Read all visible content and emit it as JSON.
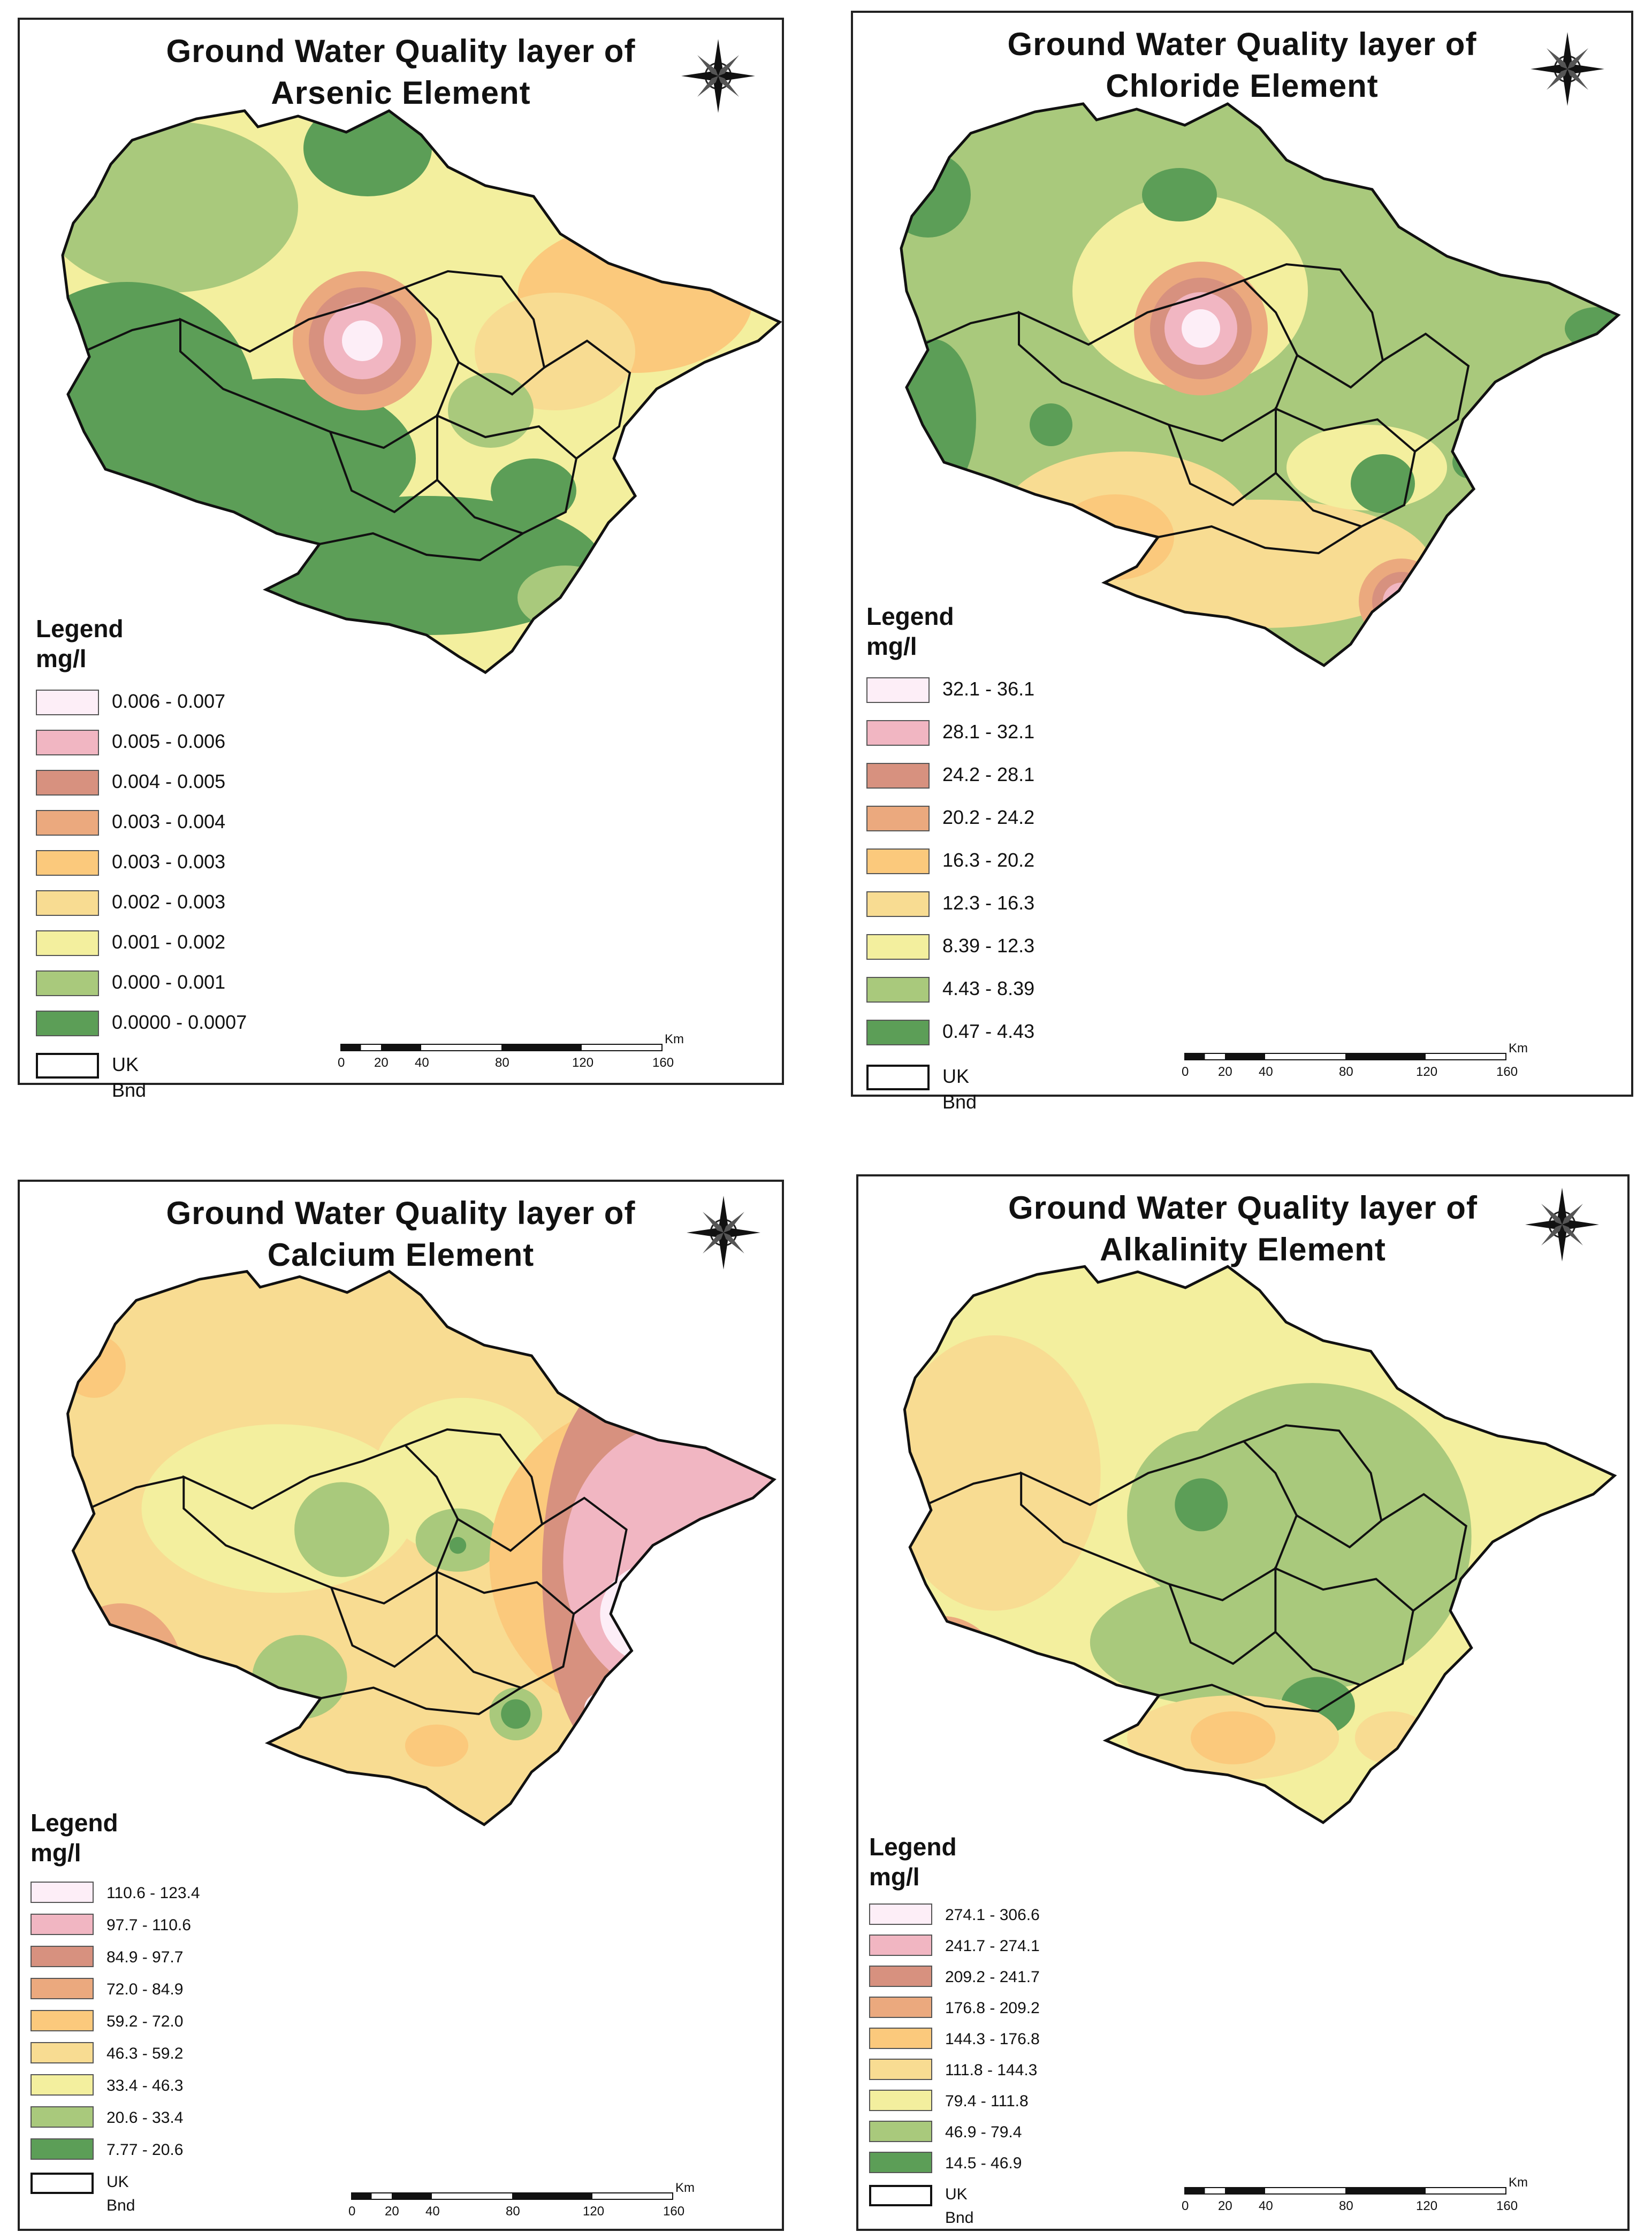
{
  "panels": [
    {
      "title_line1": "Ground Water Quality layer of",
      "title_line2": "Arsenic Element",
      "legend_heading": "Legend",
      "legend_unit": "mg/l",
      "legend_items": [
        {
          "label": "0.006 - 0.007",
          "color": "#fdeef7"
        },
        {
          "label": "0.005 - 0.006",
          "color": "#f1b6c2"
        },
        {
          "label": "0.004 - 0.005",
          "color": "#d7917f"
        },
        {
          "label": "0.003 - 0.004",
          "color": "#eba97e"
        },
        {
          "label": "0.003 - 0.003",
          "color": "#fbc97c"
        },
        {
          "label": "0.002 - 0.003",
          "color": "#f8dc92"
        },
        {
          "label": "0.001 - 0.002",
          "color": "#f3ef9e"
        },
        {
          "label": "0.000 - 0.001",
          "color": "#a9c97c"
        },
        {
          "label": "0.0000 - 0.0007",
          "color": "#5c9e57"
        }
      ],
      "boundary_label": "UK Bnd",
      "scale": {
        "unit": "Km",
        "ticks": [
          "0",
          "20",
          "40",
          "80",
          "120",
          "160"
        ]
      }
    },
    {
      "title_line1": "Ground Water Quality layer of",
      "title_line2": "Chloride Element",
      "legend_heading": "Legend",
      "legend_unit": "mg/l",
      "legend_items": [
        {
          "label": "32.1 - 36.1",
          "color": "#fdeef7"
        },
        {
          "label": "28.1 - 32.1",
          "color": "#f1b6c2"
        },
        {
          "label": "24.2 - 28.1",
          "color": "#d7917f"
        },
        {
          "label": "20.2 - 24.2",
          "color": "#eba97e"
        },
        {
          "label": "16.3 - 20.2",
          "color": "#fbc97c"
        },
        {
          "label": "12.3 - 16.3",
          "color": "#f8dc92"
        },
        {
          "label": "8.39 - 12.3",
          "color": "#f3ef9e"
        },
        {
          "label": "4.43 - 8.39",
          "color": "#a9c97c"
        },
        {
          "label": "0.47 - 4.43",
          "color": "#5c9e57"
        }
      ],
      "boundary_label": "UK Bnd",
      "scale": {
        "unit": "Km",
        "ticks": [
          "0",
          "20",
          "40",
          "80",
          "120",
          "160"
        ]
      }
    },
    {
      "title_line1": "Ground Water Quality layer of",
      "title_line2": "Calcium Element",
      "legend_heading": "Legend",
      "legend_unit": "mg/l",
      "legend_items": [
        {
          "label": "110.6 - 123.4",
          "color": "#fdeef7"
        },
        {
          "label": "97.7 - 110.6",
          "color": "#f1b6c2"
        },
        {
          "label": "84.9 - 97.7",
          "color": "#d7917f"
        },
        {
          "label": "72.0 - 84.9",
          "color": "#eba97e"
        },
        {
          "label": "59.2 - 72.0",
          "color": "#fbc97c"
        },
        {
          "label": "46.3 - 59.2",
          "color": "#f8dc92"
        },
        {
          "label": "33.4 - 46.3",
          "color": "#f3ef9e"
        },
        {
          "label": "20.6 - 33.4",
          "color": "#a9c97c"
        },
        {
          "label": "7.77 - 20.6",
          "color": "#5c9e57"
        }
      ],
      "boundary_label": "UK Bnd",
      "scale": {
        "unit": "Km",
        "ticks": [
          "0",
          "20",
          "40",
          "80",
          "120",
          "160"
        ]
      }
    },
    {
      "title_line1": "Ground Water Quality layer of",
      "title_line2": "Alkalinity Element",
      "legend_heading": "Legend",
      "legend_unit": "mg/l",
      "legend_items": [
        {
          "label": "274.1 - 306.6",
          "color": "#fdeef7"
        },
        {
          "label": "241.7 - 274.1",
          "color": "#f1b6c2"
        },
        {
          "label": "209.2 - 241.7",
          "color": "#d7917f"
        },
        {
          "label": "176.8 - 209.2",
          "color": "#eba97e"
        },
        {
          "label": "144.3 - 176.8",
          "color": "#fbc97c"
        },
        {
          "label": "111.8 - 144.3",
          "color": "#f8dc92"
        },
        {
          "label": "79.4 - 111.8",
          "color": "#f3ef9e"
        },
        {
          "label": "46.9 - 79.4",
          "color": "#a9c97c"
        },
        {
          "label": "14.5 - 46.9",
          "color": "#5c9e57"
        }
      ],
      "boundary_label": "UK Bnd",
      "scale": {
        "unit": "Km",
        "ticks": [
          "0",
          "20",
          "40",
          "80",
          "120",
          "160"
        ]
      }
    }
  ]
}
